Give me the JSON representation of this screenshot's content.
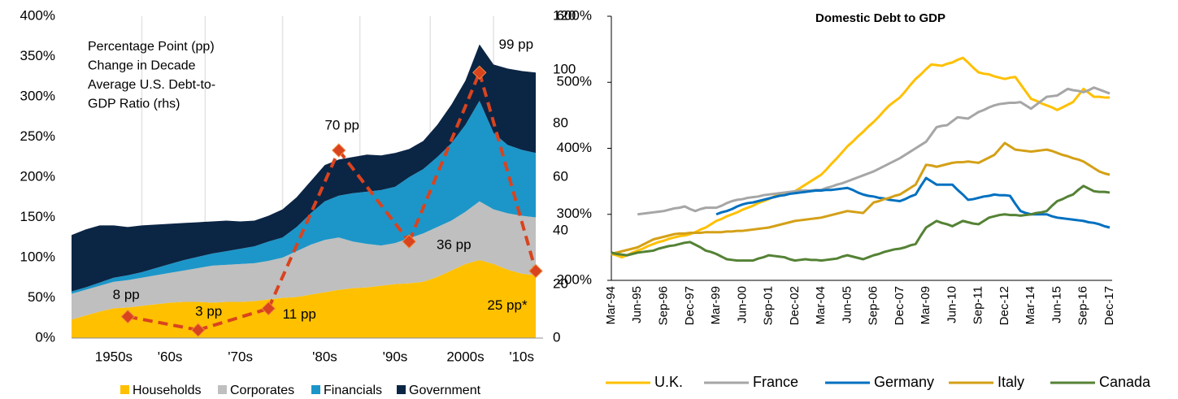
{
  "chart_data": [
    {
      "type": "area",
      "stacked": true,
      "annotation": [
        "Percentage Point (pp)",
        "Change in Decade",
        "Average U.S. Debt-to-",
        "GDP Ratio (rhs)"
      ],
      "annotation_color": "#D9431E",
      "categories": [
        null,
        null,
        null,
        "1950s",
        null,
        null,
        null,
        "'60s",
        null,
        null,
        null,
        null,
        "'70s",
        null,
        null,
        null,
        null,
        null,
        "'80s",
        null,
        null,
        null,
        null,
        "'90s",
        null,
        null,
        null,
        null,
        "2000s",
        null,
        null,
        null,
        "'10s",
        null
      ],
      "series": [
        {
          "name": "Households",
          "color": "#FFC000",
          "values": [
            23,
            28,
            33,
            37,
            38,
            40,
            42,
            44,
            45,
            45,
            44,
            45,
            45,
            46,
            48,
            50,
            51,
            54,
            57,
            60,
            62,
            63,
            65,
            67,
            68,
            70,
            76,
            84,
            92,
            97,
            92,
            85,
            80,
            78
          ]
        },
        {
          "name": "Corporates",
          "color": "#BFBFBF",
          "values": [
            32,
            32,
            32,
            33,
            34,
            35,
            36,
            37,
            39,
            42,
            46,
            46,
            47,
            47,
            48,
            50,
            57,
            62,
            65,
            65,
            58,
            54,
            50,
            51,
            56,
            60,
            62,
            62,
            65,
            73,
            68,
            70,
            72,
            72
          ]
        },
        {
          "name": "Financials",
          "color": "#1C96C8",
          "values": [
            3,
            3,
            4,
            5,
            6,
            7,
            9,
            11,
            13,
            14,
            15,
            17,
            19,
            21,
            24,
            25,
            30,
            39,
            48,
            52,
            60,
            65,
            69,
            70,
            76,
            80,
            87,
            96,
            108,
            125,
            95,
            85,
            82,
            80
          ]
        },
        {
          "name": "Government",
          "color": "#0B2545",
          "values": [
            70,
            72,
            71,
            65,
            60,
            58,
            54,
            50,
            46,
            43,
            40,
            38,
            34,
            32,
            32,
            35,
            37,
            40,
            45,
            45,
            45,
            46,
            43,
            42,
            35,
            35,
            40,
            48,
            55,
            70,
            85,
            95,
            98,
            100
          ]
        },
        {
          "type": "line",
          "axis": "y2",
          "color": "#D9431E",
          "dashed": true,
          "marker": "diamond",
          "values": [
            null,
            null,
            null,
            null,
            8,
            null,
            null,
            null,
            null,
            3,
            null,
            null,
            null,
            null,
            11,
            null,
            null,
            null,
            null,
            70,
            null,
            null,
            null,
            null,
            36,
            null,
            null,
            null,
            null,
            99,
            null,
            null,
            null,
            25
          ],
          "value_labels": [
            null,
            null,
            null,
            null,
            "8 pp",
            null,
            null,
            null,
            null,
            "3 pp",
            null,
            null,
            null,
            null,
            "11 pp",
            null,
            null,
            null,
            null,
            "70 pp",
            null,
            null,
            null,
            null,
            "36 pp",
            null,
            null,
            null,
            null,
            "99 pp",
            null,
            null,
            null,
            "25 pp*"
          ]
        }
      ],
      "ylim": [
        0,
        400
      ],
      "yticks": [
        {
          "value": 0,
          "label": "0%"
        },
        {
          "value": 50,
          "label": "50%"
        },
        {
          "value": 100,
          "label": "100%"
        },
        {
          "value": 150,
          "label": "150%"
        },
        {
          "value": 200,
          "label": "200%"
        },
        {
          "value": 250,
          "label": "250%"
        },
        {
          "value": 300,
          "label": "300%"
        },
        {
          "value": 350,
          "label": "350%"
        },
        {
          "value": 400,
          "label": "400%"
        }
      ],
      "y2lim": [
        0,
        120
      ],
      "y2ticks": [
        0,
        20,
        40,
        60,
        80,
        100,
        120
      ],
      "legend": "bottom"
    },
    {
      "type": "line",
      "title": "Domestic Debt to GDP",
      "categories": [
        "Mar-94",
        null,
        null,
        null,
        null,
        "Jun-95",
        null,
        null,
        null,
        null,
        "Sep-96",
        null,
        null,
        null,
        null,
        "Dec-97",
        null,
        null,
        null,
        null,
        "Mar-99",
        null,
        null,
        null,
        null,
        "Jun-00",
        null,
        null,
        null,
        null,
        "Sep-01",
        null,
        null,
        null,
        null,
        "Dec-02",
        null,
        null,
        null,
        null,
        "Mar-04",
        null,
        null,
        null,
        null,
        "Jun-05",
        null,
        null,
        null,
        null,
        "Sep-06",
        null,
        null,
        null,
        null,
        "Dec-07",
        null,
        null,
        null,
        null,
        "Mar-09",
        null,
        null,
        null,
        null,
        "Jun-10",
        null,
        null,
        null,
        null,
        "Sep-11",
        null,
        null,
        null,
        null,
        "Dec-12",
        null,
        null,
        null,
        null,
        "Mar-14",
        null,
        null,
        null,
        null,
        "Jun-15",
        null,
        null,
        null,
        null,
        "Sep-16",
        null,
        null,
        null,
        null,
        "Dec-17"
      ],
      "series": [
        {
          "name": "U.K.",
          "color": "#FFC000",
          "values": [
            240,
            238,
            235,
            238,
            242,
            245,
            248,
            252,
            255,
            258,
            260,
            263,
            265,
            267,
            268,
            270,
            273,
            277,
            280,
            285,
            290,
            293,
            297,
            300,
            303,
            307,
            310,
            313,
            317,
            320,
            323,
            327,
            330,
            332,
            333,
            335,
            340,
            345,
            350,
            355,
            360,
            368,
            377,
            385,
            394,
            403,
            410,
            418,
            425,
            433,
            440,
            448,
            457,
            465,
            471,
            477,
            486,
            496,
            505,
            512,
            520,
            527,
            526,
            525,
            528,
            530,
            534,
            537,
            530,
            522,
            515,
            513,
            512,
            509,
            507,
            505,
            507,
            508,
            497,
            486,
            475,
            472,
            468,
            465,
            462,
            458,
            462,
            466,
            470,
            480,
            490,
            484,
            478,
            478,
            477,
            477
          ]
        },
        {
          "name": "France",
          "color": "#A6A6A6",
          "values": [
            null,
            null,
            null,
            null,
            null,
            300,
            301,
            302,
            303,
            304,
            305,
            307,
            309,
            310,
            312,
            308,
            305,
            308,
            310,
            310,
            310,
            313,
            317,
            320,
            322,
            323,
            325,
            326,
            327,
            329,
            330,
            331,
            332,
            333,
            334,
            335,
            336,
            336,
            336,
            337,
            337,
            340,
            342,
            345,
            347,
            350,
            353,
            356,
            359,
            362,
            365,
            369,
            373,
            377,
            381,
            385,
            390,
            395,
            400,
            405,
            410,
            421,
            432,
            434,
            435,
            441,
            447,
            446,
            445,
            450,
            455,
            458,
            462,
            465,
            467,
            468,
            469,
            469,
            470,
            465,
            460,
            466,
            472,
            478,
            479,
            480,
            485,
            490,
            488,
            487,
            485,
            488,
            492,
            489,
            486,
            483
          ]
        },
        {
          "name": "Germany",
          "color": "#0070C0",
          "values": [
            null,
            null,
            null,
            null,
            null,
            null,
            null,
            null,
            null,
            null,
            null,
            null,
            null,
            null,
            null,
            null,
            null,
            null,
            null,
            null,
            300,
            303,
            305,
            308,
            312,
            315,
            317,
            318,
            320,
            322,
            324,
            326,
            328,
            329,
            331,
            332,
            333,
            334,
            335,
            336,
            336,
            337,
            337,
            338,
            339,
            340,
            337,
            333,
            330,
            328,
            327,
            325,
            324,
            322,
            321,
            320,
            323,
            327,
            330,
            343,
            355,
            350,
            345,
            345,
            345,
            345,
            337,
            330,
            322,
            323,
            325,
            327,
            328,
            330,
            329,
            329,
            328,
            316,
            305,
            302,
            300,
            300,
            300,
            300,
            297,
            295,
            294,
            293,
            292,
            291,
            290,
            288,
            287,
            285,
            282,
            280
          ]
        },
        {
          "name": "Italy",
          "color": "#D4A017",
          "values": [
            240,
            242,
            244,
            246,
            248,
            250,
            254,
            258,
            262,
            264,
            266,
            268,
            270,
            271,
            271,
            272,
            272,
            272,
            273,
            273,
            273,
            273,
            274,
            274,
            275,
            275,
            276,
            277,
            278,
            279,
            280,
            282,
            284,
            286,
            288,
            290,
            291,
            292,
            293,
            294,
            295,
            297,
            299,
            301,
            303,
            305,
            304,
            303,
            302,
            310,
            318,
            320,
            323,
            325,
            328,
            330,
            335,
            340,
            345,
            360,
            375,
            374,
            372,
            374,
            376,
            378,
            379,
            379,
            380,
            379,
            378,
            382,
            386,
            390,
            399,
            408,
            403,
            398,
            397,
            396,
            395,
            396,
            397,
            398,
            396,
            393,
            390,
            388,
            385,
            383,
            380,
            375,
            370,
            365,
            362,
            360
          ]
        },
        {
          "name": "Canada",
          "color": "#548235",
          "values": [
            242,
            240,
            239,
            238,
            240,
            242,
            243,
            244,
            245,
            248,
            250,
            252,
            253,
            255,
            257,
            258,
            254,
            250,
            245,
            243,
            240,
            236,
            232,
            231,
            230,
            230,
            230,
            230,
            233,
            235,
            238,
            237,
            236,
            235,
            232,
            230,
            231,
            232,
            231,
            231,
            230,
            231,
            232,
            233,
            236,
            238,
            236,
            234,
            232,
            235,
            238,
            240,
            243,
            245,
            247,
            248,
            250,
            253,
            255,
            268,
            280,
            285,
            290,
            287,
            285,
            282,
            286,
            290,
            288,
            286,
            285,
            290,
            295,
            297,
            299,
            300,
            299,
            299,
            298,
            299,
            300,
            302,
            303,
            305,
            313,
            320,
            323,
            327,
            330,
            337,
            343,
            339,
            335,
            334,
            334,
            333
          ]
        }
      ],
      "ylim": [
        200,
        600
      ],
      "yticks": [
        {
          "value": 200,
          "label": "200%"
        },
        {
          "value": 300,
          "label": "300%"
        },
        {
          "value": 400,
          "label": "400%"
        },
        {
          "value": 500,
          "label": "500%"
        },
        {
          "value": 600,
          "label": "600%"
        }
      ],
      "legend": "bottom"
    }
  ]
}
